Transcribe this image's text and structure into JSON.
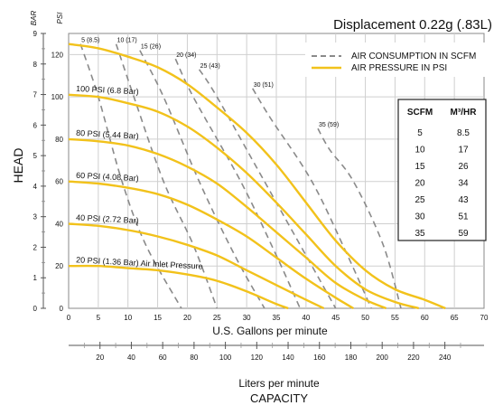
{
  "chart_data": {
    "type": "line",
    "title": "Displacement 0.22g (.83L)",
    "xlabel": "U.S. Gallons per minute",
    "x2label": "Liters per minute",
    "x2ticks": [
      20,
      40,
      60,
      80,
      100,
      120,
      140,
      160,
      180,
      200,
      220,
      240
    ],
    "capacity_label": "CAPACITY",
    "ylabel": "HEAD",
    "y_psi_unit": "PSI",
    "y_bar_unit": "BAR",
    "xlim": [
      0,
      70
    ],
    "ylim_psi": [
      0,
      130
    ],
    "ylim_bar": [
      0,
      9
    ],
    "xticks": [
      0,
      5,
      10,
      15,
      20,
      25,
      30,
      35,
      40,
      45,
      50,
      55,
      60,
      65,
      70
    ],
    "yticks_psi": [
      0,
      20,
      40,
      60,
      80,
      100,
      120
    ],
    "yticks_bar": [
      0,
      1,
      2,
      3,
      4,
      5,
      6,
      7,
      8,
      9
    ],
    "legend": {
      "position": "top-right",
      "entries": [
        {
          "label": "AIR CONSUMPTION IN SCFM",
          "style": "dashed",
          "color": "#8a8a8a"
        },
        {
          "label": "AIR PRESSURE IN PSI",
          "style": "solid",
          "color": "#f2c21b"
        }
      ]
    },
    "pressure_series": [
      {
        "name": "120 PSI",
        "label": "",
        "points": [
          [
            0,
            125
          ],
          [
            5,
            123
          ],
          [
            10,
            119
          ],
          [
            15,
            114
          ],
          [
            20,
            106
          ],
          [
            25,
            95
          ],
          [
            30,
            83
          ],
          [
            35,
            68
          ],
          [
            40,
            50
          ],
          [
            45,
            32
          ],
          [
            50,
            18
          ],
          [
            55,
            9
          ],
          [
            60,
            4
          ],
          [
            63.5,
            0
          ]
        ]
      },
      {
        "name": "100 PSI",
        "label": "100 PSI (6.8 Bar)",
        "points": [
          [
            0,
            101
          ],
          [
            5,
            100
          ],
          [
            10,
            97
          ],
          [
            15,
            93
          ],
          [
            20,
            86
          ],
          [
            25,
            76
          ],
          [
            30,
            64
          ],
          [
            35,
            50
          ],
          [
            40,
            35
          ],
          [
            45,
            20
          ],
          [
            50,
            9
          ],
          [
            55,
            3
          ],
          [
            59,
            0
          ]
        ]
      },
      {
        "name": "80 PSI",
        "label": "80 PSI (5.44 Bar)",
        "points": [
          [
            0,
            80
          ],
          [
            5,
            79
          ],
          [
            10,
            77
          ],
          [
            15,
            73
          ],
          [
            20,
            67
          ],
          [
            25,
            59
          ],
          [
            30,
            48
          ],
          [
            35,
            36
          ],
          [
            40,
            24
          ],
          [
            45,
            12
          ],
          [
            50,
            4
          ],
          [
            53.5,
            0
          ]
        ]
      },
      {
        "name": "60 PSI",
        "label": "60 PSI (4.08 Bar)",
        "points": [
          [
            0,
            60
          ],
          [
            5,
            59
          ],
          [
            10,
            57
          ],
          [
            15,
            54
          ],
          [
            20,
            49
          ],
          [
            25,
            42
          ],
          [
            30,
            34
          ],
          [
            35,
            24
          ],
          [
            40,
            14
          ],
          [
            45,
            5
          ],
          [
            48,
            0
          ]
        ]
      },
      {
        "name": "40 PSI",
        "label": "40 PSI (2.72 Bar)",
        "points": [
          [
            0,
            40
          ],
          [
            5,
            39
          ],
          [
            10,
            37
          ],
          [
            15,
            34
          ],
          [
            20,
            30
          ],
          [
            25,
            25
          ],
          [
            30,
            18
          ],
          [
            35,
            11
          ],
          [
            40,
            4
          ],
          [
            43,
            0
          ]
        ]
      },
      {
        "name": "20 PSI",
        "label": "20 PSI (1.36 Bar) Air Inlet Pressure",
        "points": [
          [
            0,
            20
          ],
          [
            5,
            20
          ],
          [
            10,
            19
          ],
          [
            15,
            18
          ],
          [
            20,
            16
          ],
          [
            25,
            13
          ],
          [
            30,
            8
          ],
          [
            35,
            2
          ],
          [
            37,
            0
          ]
        ]
      }
    ],
    "scfm_series": [
      {
        "name": "5 (8.5)",
        "points": [
          [
            2,
            125
          ],
          [
            5,
            100
          ],
          [
            9,
            60
          ],
          [
            13,
            30
          ],
          [
            19,
            0
          ]
        ]
      },
      {
        "name": "10 (17)",
        "points": [
          [
            8,
            125
          ],
          [
            11,
            100
          ],
          [
            16,
            60
          ],
          [
            21,
            30
          ],
          [
            25,
            0
          ]
        ]
      },
      {
        "name": "15 (26)",
        "points": [
          [
            12,
            122
          ],
          [
            16,
            100
          ],
          [
            22,
            60
          ],
          [
            28,
            25
          ],
          [
            33,
            0
          ]
        ]
      },
      {
        "name": "20 (34)",
        "points": [
          [
            18,
            118
          ],
          [
            21,
            100
          ],
          [
            29,
            60
          ],
          [
            35,
            25
          ],
          [
            39,
            0
          ]
        ]
      },
      {
        "name": "25 (43)",
        "points": [
          [
            22,
            113
          ],
          [
            25,
            100
          ],
          [
            33,
            60
          ],
          [
            40,
            25
          ],
          [
            45,
            0
          ]
        ]
      },
      {
        "name": "30 (51)",
        "points": [
          [
            31,
            104
          ],
          [
            34,
            90
          ],
          [
            41,
            60
          ],
          [
            47,
            25
          ],
          [
            51,
            0
          ]
        ]
      },
      {
        "name": "35 (59)",
        "points": [
          [
            42,
            85
          ],
          [
            44,
            75
          ],
          [
            48,
            60
          ],
          [
            53,
            30
          ],
          [
            56,
            0
          ]
        ]
      }
    ],
    "scfm_table": {
      "headers": [
        "SCFM",
        "M³/HR"
      ],
      "rows": [
        [
          "5",
          "8.5"
        ],
        [
          "10",
          "17"
        ],
        [
          "15",
          "26"
        ],
        [
          "20",
          "34"
        ],
        [
          "25",
          "43"
        ],
        [
          "30",
          "51"
        ],
        [
          "35",
          "59"
        ]
      ]
    }
  }
}
